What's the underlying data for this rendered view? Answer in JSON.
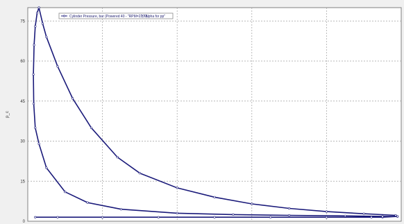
{
  "chart_data": {
    "type": "line",
    "ylabel": "p_c",
    "ylim": [
      0,
      80
    ],
    "y_ticks": [
      "75",
      "60",
      "45",
      "30",
      "15",
      "0"
    ],
    "grid": true,
    "legend_position": "top-left",
    "legend": {
      "entries": [
        "Cylinder Pressure, bar (Powered 40 - \"RPM=2200)",
        "\"; \"Alpha for pp\""
      ]
    },
    "series": [
      {
        "name": "Cylinder Pressure, bar (Powered 40 - \"RPM=2200)",
        "color": "#1a1a7a",
        "points": [
          [
            0.02,
            1.5
          ],
          [
            0.08,
            1.5
          ],
          [
            0.2,
            1.5
          ],
          [
            0.35,
            1.5
          ],
          [
            0.5,
            1.5
          ],
          [
            0.65,
            1.5
          ],
          [
            0.8,
            1.5
          ],
          [
            0.92,
            1.5
          ],
          [
            0.95,
            1.5
          ],
          [
            0.99,
            1.8
          ],
          [
            0.985,
            2.2
          ],
          [
            0.9,
            2.8
          ],
          [
            0.8,
            3.6
          ],
          [
            0.7,
            4.8
          ],
          [
            0.6,
            6.5
          ],
          [
            0.5,
            9.0
          ],
          [
            0.4,
            12.5
          ],
          [
            0.3,
            18.0
          ],
          [
            0.24,
            24.0
          ],
          [
            0.17,
            35.0
          ],
          [
            0.12,
            46.0
          ],
          [
            0.08,
            58.0
          ],
          [
            0.05,
            69.0
          ],
          [
            0.04,
            74.0
          ],
          [
            0.03,
            80.0
          ],
          [
            0.025,
            78.0
          ],
          [
            0.02,
            73.0
          ],
          [
            0.017,
            66.0
          ],
          [
            0.015,
            55.0
          ],
          [
            0.016,
            44.0
          ],
          [
            0.02,
            35.0
          ],
          [
            0.03,
            29.0
          ],
          [
            0.05,
            20.0
          ],
          [
            0.1,
            11.0
          ],
          [
            0.16,
            7.0
          ],
          [
            0.25,
            4.5
          ],
          [
            0.4,
            3.0
          ],
          [
            0.55,
            2.5
          ],
          [
            0.7,
            2.2
          ],
          [
            0.85,
            2.0
          ],
          [
            0.95,
            1.8
          ],
          [
            0.99,
            1.8
          ]
        ]
      }
    ]
  }
}
